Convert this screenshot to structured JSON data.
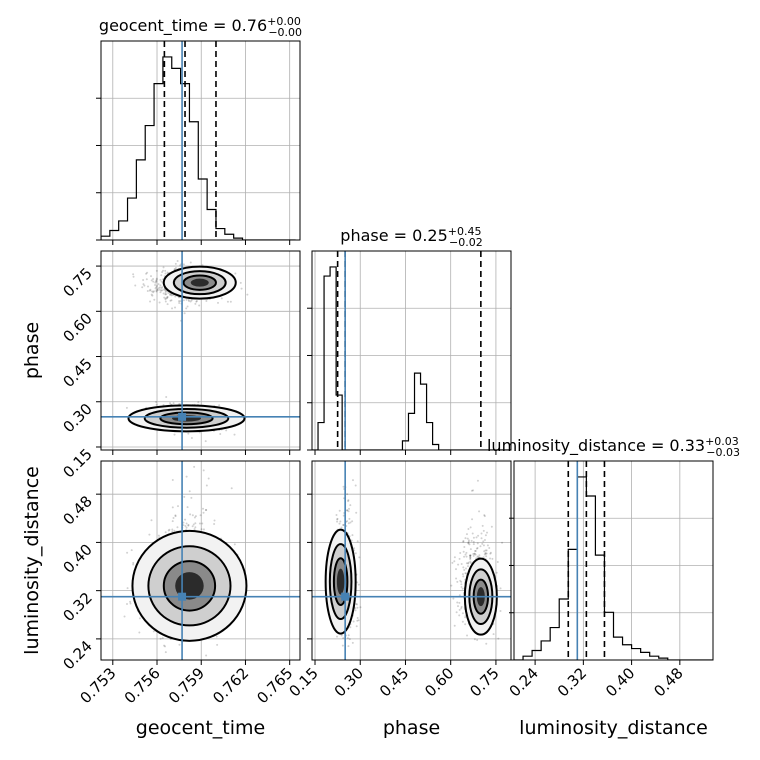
{
  "chart_data": {
    "type": "corner",
    "parameters": [
      "geocent_time",
      "phase",
      "luminosity_distance"
    ],
    "titles": {
      "geocent_time": {
        "prefix": "geocent_time = ",
        "median": "0.76",
        "plus": "+0.00",
        "minus": "−0.00"
      },
      "phase": {
        "prefix": "phase = ",
        "median": "0.25",
        "plus": "+0.45",
        "minus": "−0.02"
      },
      "luminosity_distance": {
        "prefix": "luminosity_distance = ",
        "median": "0.33",
        "plus": "+0.03",
        "minus": "−0.03"
      }
    },
    "ranges": {
      "geocent_time": [
        0.7522,
        0.7657
      ],
      "phase": [
        0.14,
        0.8
      ],
      "luminosity_distance": [
        0.205,
        0.535
      ]
    },
    "ticks": {
      "geocent_time": [
        "0.753",
        "0.756",
        "0.759",
        "0.762",
        "0.765"
      ],
      "phase": [
        "0.15",
        "0.30",
        "0.45",
        "0.60",
        "0.75"
      ],
      "luminosity_distance": [
        "0.24",
        "0.32",
        "0.40",
        "0.48"
      ]
    },
    "truths": {
      "geocent_time": 0.7577,
      "phase": 0.25,
      "luminosity_distance": 0.31
    },
    "quantiles": {
      "geocent_time": [
        0.7565,
        0.7579,
        0.76
      ],
      "phase": [
        0.225,
        0.25,
        0.7
      ],
      "luminosity_distance": [
        0.295,
        0.325,
        0.355
      ]
    },
    "histograms": {
      "geocent_time": {
        "edges_start": 0.7522,
        "bin_width": 0.0006,
        "counts": [
          2,
          5,
          10,
          22,
          42,
          60,
          82,
          96,
          90,
          82,
          62,
          32,
          16,
          6,
          3,
          1,
          0,
          0,
          0,
          0,
          0,
          0
        ]
      },
      "phase": {
        "edges_start": 0.14,
        "bin_width": 0.02,
        "counts": [
          0,
          15,
          95,
          100,
          30,
          0,
          0,
          0,
          0,
          0,
          0,
          0,
          0,
          0,
          0,
          5,
          20,
          42,
          36,
          15,
          3,
          0,
          0,
          0,
          0,
          0,
          0,
          0,
          0,
          0,
          0,
          0,
          0
        ]
      },
      "luminosity_distance": {
        "edges_start": 0.205,
        "bin_width": 0.015,
        "counts": [
          0,
          2,
          5,
          10,
          17,
          32,
          58,
          96,
          86,
          55,
          25,
          12,
          8,
          6,
          4,
          2,
          1,
          0,
          0,
          0,
          0,
          0
        ]
      }
    }
  }
}
